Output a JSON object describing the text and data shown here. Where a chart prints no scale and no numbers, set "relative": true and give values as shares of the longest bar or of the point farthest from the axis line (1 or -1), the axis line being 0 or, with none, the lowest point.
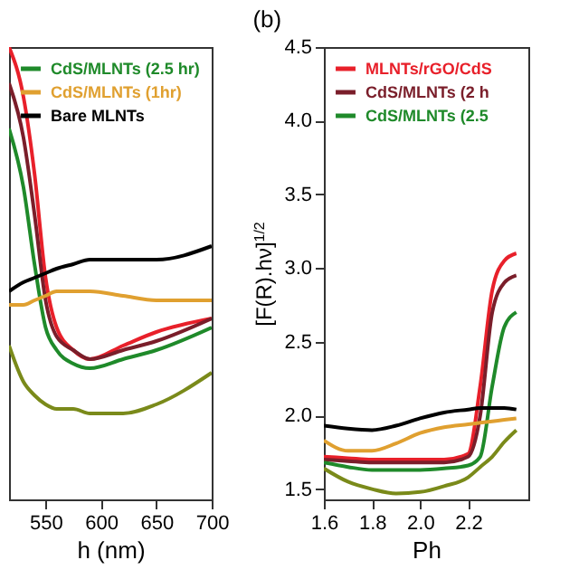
{
  "chart_data": [
    {
      "type": "line",
      "xlabel": "h (nm)",
      "relative": true,
      "legend": "top left",
      "xlim": [
        517,
        700
      ],
      "xticks": [
        550,
        600,
        650,
        700
      ],
      "x": [
        517,
        530,
        540,
        550,
        560,
        575,
        590,
        620,
        650,
        700
      ],
      "series": [
        {
          "color": "#e8202a",
          "values": [
            1.0,
            0.89,
            0.72,
            0.49,
            0.38,
            0.33,
            0.31,
            0.34,
            0.37,
            0.4
          ]
        },
        {
          "color": "#7a1e2a",
          "values": [
            0.92,
            0.8,
            0.63,
            0.44,
            0.36,
            0.33,
            0.31,
            0.33,
            0.35,
            0.4
          ]
        },
        {
          "name": "CdS/MLNTs (2.5 hr)",
          "color": "#1f8a2a",
          "values": [
            0.82,
            0.69,
            0.52,
            0.38,
            0.33,
            0.3,
            0.29,
            0.31,
            0.33,
            0.38
          ]
        },
        {
          "name": "CdS/MLNTs (1hr)",
          "color": "#e0a030",
          "values": [
            0.43,
            0.43,
            0.44,
            0.45,
            0.46,
            0.46,
            0.46,
            0.45,
            0.44,
            0.44
          ]
        },
        {
          "name": "Bare MLNTs",
          "color": "#000000",
          "values": [
            0.46,
            0.48,
            0.49,
            0.5,
            0.51,
            0.52,
            0.53,
            0.53,
            0.53,
            0.56
          ]
        },
        {
          "color": "#7a8a1a",
          "values": [
            0.34,
            0.26,
            0.23,
            0.21,
            0.2,
            0.2,
            0.19,
            0.19,
            0.21,
            0.28
          ]
        }
      ]
    },
    {
      "type": "line",
      "title": "(b)",
      "xlabel": "Ph",
      "ylabel": "[F(R).hν]$^{1/2}$",
      "legend": "top left",
      "xlim": [
        1.6,
        2.45
      ],
      "xticks": [
        1.6,
        1.8,
        {
          "value": 2,
          "label": "2.0"
        },
        2.2
      ],
      "ylim": [
        1.43,
        4.5
      ],
      "yticks": [
        1.5,
        {
          "value": 2,
          "label": "2.0"
        },
        2.5,
        {
          "value": 3,
          "label": "3.0"
        },
        3.5,
        {
          "value": 4,
          "label": "4.0"
        },
        4.5
      ],
      "x": [
        1.6,
        1.7,
        1.8,
        1.9,
        2.0,
        2.1,
        2.2,
        2.25,
        2.3,
        2.35,
        2.4
      ],
      "series": [
        {
          "name": "MLNTs/rGO/CdS",
          "color": "#e8202a",
          "values": [
            1.72,
            1.71,
            1.7,
            1.7,
            1.7,
            1.7,
            1.74,
            2.2,
            2.85,
            3.05,
            3.1
          ]
        },
        {
          "name": "CdS/MLNTs (2 h",
          "color": "#7a1e2a",
          "values": [
            1.7,
            1.69,
            1.68,
            1.68,
            1.68,
            1.68,
            1.72,
            2.0,
            2.7,
            2.9,
            2.95
          ]
        },
        {
          "name": "CdS/MLNTs (2.5",
          "color": "#1f8a2a",
          "values": [
            1.68,
            1.65,
            1.63,
            1.63,
            1.63,
            1.64,
            1.66,
            1.72,
            2.2,
            2.6,
            2.7
          ]
        },
        {
          "color": "#e0a030",
          "values": [
            1.83,
            1.76,
            1.76,
            1.81,
            1.88,
            1.92,
            1.94,
            1.95,
            1.96,
            1.97,
            1.98
          ]
        },
        {
          "color": "#000000",
          "values": [
            1.93,
            1.91,
            1.9,
            1.93,
            1.98,
            2.02,
            2.04,
            2.05,
            2.05,
            2.05,
            2.04
          ]
        },
        {
          "color": "#7a8a1a",
          "values": [
            1.64,
            1.55,
            1.5,
            1.47,
            1.48,
            1.52,
            1.58,
            1.65,
            1.72,
            1.82,
            1.9
          ]
        }
      ]
    }
  ]
}
